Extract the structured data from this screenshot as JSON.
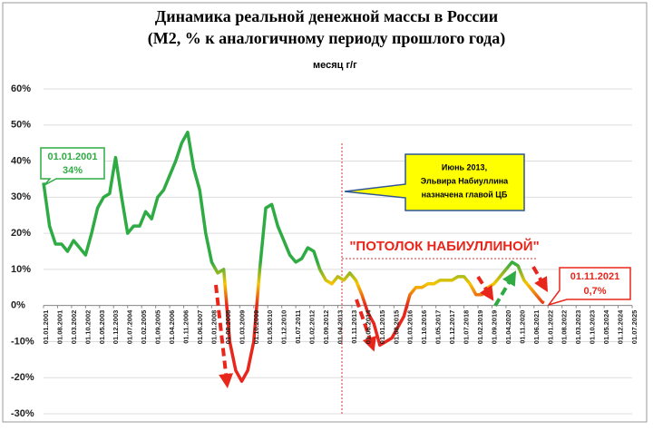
{
  "chart_data": {
    "type": "line",
    "title": "Динамика реальной денежной массы в России",
    "subtitle": "(М2, % к аналогичному периоду прошлого года)",
    "series": [
      {
        "name": "месяц г/г",
        "color_stops": [
          {
            "value": 12,
            "color": "#2eab43"
          },
          {
            "value": 6,
            "color": "#f5c400"
          },
          {
            "value": 0,
            "color": "#e8261b"
          }
        ],
        "values": [
          34,
          22,
          17,
          17,
          15,
          18,
          16,
          14,
          20,
          27,
          30,
          31,
          41,
          30,
          20,
          22,
          22,
          26,
          24,
          30,
          32,
          36,
          40,
          45,
          48,
          38,
          32,
          20,
          12,
          9,
          10,
          -10,
          -18,
          -21,
          -18,
          -10,
          10,
          27,
          28,
          22,
          18,
          14,
          12,
          13,
          16,
          15,
          10,
          7,
          6,
          8,
          7,
          9,
          7,
          3,
          -2,
          -5,
          -11,
          -10,
          -9,
          -6,
          -3,
          3,
          5,
          5,
          6,
          6,
          7,
          7,
          7,
          8,
          8,
          6,
          3,
          3,
          5,
          6,
          8,
          10,
          12,
          11,
          7,
          5,
          3,
          1,
          0.7
        ]
      }
    ],
    "x": [
      "01.01.2001",
      "01.04.2001",
      "01.07.2001",
      "01.10.2001",
      "01.01.2002",
      "01.04.2002",
      "01.07.2002",
      "01.10.2002",
      "01.01.2003",
      "01.04.2003",
      "01.07.2003",
      "01.10.2003",
      "01.01.2004",
      "01.04.2004",
      "01.07.2004",
      "01.10.2004",
      "01.01.2005",
      "01.04.2005",
      "01.07.2005",
      "01.10.2005",
      "01.01.2006",
      "01.04.2006",
      "01.07.2006",
      "01.10.2006",
      "01.01.2007",
      "01.04.2007",
      "01.07.2007",
      "01.10.2007",
      "01.01.2008",
      "01.04.2008",
      "01.07.2008",
      "01.10.2008",
      "01.01.2009",
      "01.04.2009",
      "01.07.2009",
      "01.10.2009",
      "01.01.2010",
      "01.04.2010",
      "01.07.2010",
      "01.10.2010",
      "01.01.2011",
      "01.04.2011",
      "01.07.2011",
      "01.10.2011",
      "01.01.2012",
      "01.04.2012",
      "01.07.2012",
      "01.10.2012",
      "01.01.2013",
      "01.04.2013",
      "01.07.2013",
      "01.10.2013",
      "01.01.2014",
      "01.04.2014",
      "01.07.2014",
      "01.10.2014",
      "01.01.2015",
      "01.04.2015",
      "01.07.2015",
      "01.10.2015",
      "01.01.2016",
      "01.04.2016",
      "01.07.2016",
      "01.10.2016",
      "01.01.2017",
      "01.04.2017",
      "01.07.2017",
      "01.10.2017",
      "01.01.2018",
      "01.04.2018",
      "01.07.2018",
      "01.10.2018",
      "01.01.2019",
      "01.04.2019",
      "01.07.2019",
      "01.10.2019",
      "01.01.2020",
      "01.04.2020",
      "01.07.2020",
      "01.10.2020",
      "01.01.2021",
      "01.04.2021",
      "01.07.2021",
      "01.10.2021",
      "01.11.2021"
    ],
    "xlim": [
      "01.01.2001",
      "01.07.2025"
    ],
    "xticks": [
      "01.01.2001",
      "01.08.2001",
      "01.03.2002",
      "01.10.2002",
      "01.05.2003",
      "01.12.2003",
      "01.07.2004",
      "01.02.2005",
      "01.09.2005",
      "01.04.2006",
      "01.11.2006",
      "01.06.2007",
      "01.01.2008",
      "01.08.2008",
      "01.03.2009",
      "01.10.2009",
      "01.05.2010",
      "01.12.2010",
      "01.07.2011",
      "01.02.2012",
      "01.09.2012",
      "01.04.2013",
      "01.11.2013",
      "01.06.2014",
      "01.01.2015",
      "01.08.2015",
      "01.03.2016",
      "01.10.2016",
      "01.05.2017",
      "01.12.2017",
      "01.07.2018",
      "01.02.2019",
      "01.09.2019",
      "01.04.2020",
      "01.11.2020",
      "01.06.2021",
      "01.01.2022",
      "01.08.2022",
      "01.03.2023",
      "01.10.2023",
      "01.05.2024",
      "01.12.2024",
      "01.07.2025"
    ],
    "ylim": [
      -30,
      60
    ],
    "yticks": [
      {
        "value": -30,
        "label": "-30%"
      },
      {
        "value": -20,
        "label": "-20%"
      },
      {
        "value": -10,
        "label": "-10%"
      },
      {
        "value": 0,
        "label": "0%"
      },
      {
        "value": 10,
        "label": "10%"
      },
      {
        "value": 20,
        "label": "20%"
      },
      {
        "value": 30,
        "label": "30%"
      },
      {
        "value": 40,
        "label": "40%"
      },
      {
        "value": 50,
        "label": "50%"
      },
      {
        "value": 60,
        "label": "60%"
      }
    ],
    "grid": true,
    "annotations": {
      "start_date": "01.01.2001",
      "start_value": "34%",
      "end_date": "01.11.2021",
      "end_value": "0,7%",
      "note": [
        "Июнь 2013,",
        "Эльвира Набиуллина",
        "назначена главой ЦБ"
      ],
      "ceiling": "\"ПОТОЛОК НАБИУЛЛИНОЙ\""
    }
  }
}
